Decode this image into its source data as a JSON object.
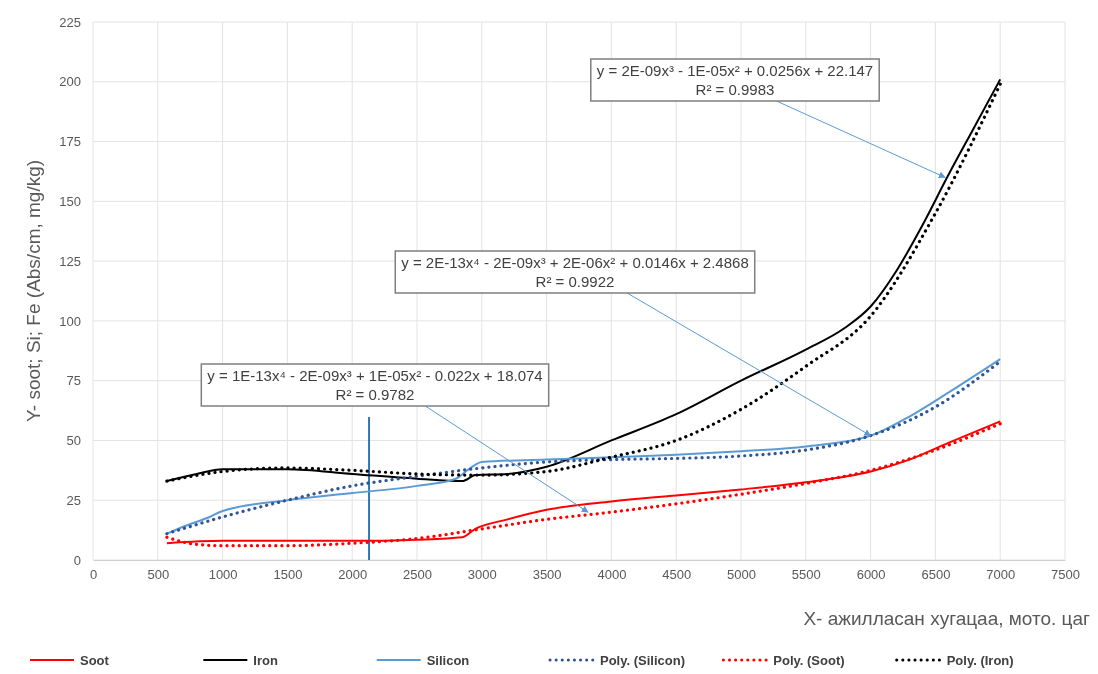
{
  "chart_data": {
    "type": "line",
    "xlabel": "X- ажилласан хугацаа, мото. цаг",
    "ylabel": "Y- soot; Si; Fe (Abs/cm, mg/kg)",
    "xlim": [
      0,
      7500
    ],
    "xticks": [
      0,
      500,
      1000,
      1500,
      2000,
      2500,
      3000,
      3500,
      4000,
      4500,
      5000,
      5500,
      6000,
      6500,
      7000,
      7500
    ],
    "ylim": [
      0,
      225
    ],
    "yticks": [
      0,
      25,
      50,
      75,
      100,
      125,
      150,
      175,
      200,
      225
    ],
    "grid": true,
    "legend": "bottom",
    "marker": "none",
    "series": [
      {
        "name": "Soot",
        "color": "#ff0000",
        "line_style": "solid",
        "x": [
          570,
          1000,
          1500,
          2000,
          2500,
          2850,
          2950,
          3200,
          3500,
          4000,
          4500,
          5000,
          5500,
          6000,
          6300,
          6600,
          7000
        ],
        "values": [
          7,
          8,
          8,
          8,
          8.5,
          9.5,
          13,
          17,
          21,
          24.5,
          27,
          29.5,
          32.5,
          37,
          42,
          49,
          58
        ]
      },
      {
        "name": "Iron",
        "color": "#000000",
        "line_style": "solid",
        "x": [
          570,
          800,
          1000,
          1500,
          2000,
          2500,
          2850,
          2950,
          3200,
          3500,
          4000,
          4500,
          5000,
          5500,
          5800,
          6000,
          6200,
          6400,
          6600,
          6800,
          7000
        ],
        "values": [
          33,
          36,
          38,
          38,
          36,
          34,
          33,
          35.5,
          36,
          39,
          50,
          61,
          75,
          88,
          97,
          106,
          121,
          140,
          161,
          181,
          201
        ]
      },
      {
        "name": "Silicon",
        "color": "#5b9bd5",
        "line_style": "solid",
        "x": [
          570,
          700,
          900,
          1000,
          1500,
          2000,
          2500,
          2800,
          2900,
          3000,
          3500,
          4000,
          4500,
          5000,
          5500,
          6000,
          6300,
          6600,
          7000
        ],
        "values": [
          11,
          14,
          18,
          20.5,
          25,
          28,
          31,
          34,
          38,
          41,
          42,
          43,
          44,
          45.5,
          47.5,
          52,
          60,
          70,
          84
        ]
      },
      {
        "name": "Poly. (Silicon)",
        "color": "#2f5597",
        "line_style": "dotted",
        "x": [
          570,
          1000,
          1500,
          2000,
          2500,
          3000,
          3500,
          4000,
          4500,
          5000,
          5500,
          6000,
          6500,
          7000
        ],
        "values": [
          11,
          18,
          25,
          31,
          35,
          38.5,
          41,
          42,
          42.5,
          43.5,
          46,
          52,
          64,
          83
        ]
      },
      {
        "name": "Poly. (Soot)",
        "color": "#ff0000",
        "line_style": "dotted",
        "x": [
          570,
          800,
          1000,
          1500,
          2000,
          2500,
          3000,
          3500,
          4000,
          4500,
          5000,
          5500,
          6000,
          6500,
          7000
        ],
        "values": [
          9.5,
          6.5,
          6,
          6,
          7,
          9,
          13,
          17,
          20,
          23.5,
          27.5,
          32,
          37.5,
          46,
          57
        ]
      },
      {
        "name": "Poly. (Iron)",
        "color": "#000000",
        "line_style": "dotted",
        "x": [
          570,
          1000,
          1500,
          2000,
          2500,
          3000,
          3500,
          4000,
          4500,
          5000,
          5500,
          6000,
          6500,
          7000
        ],
        "values": [
          33,
          37,
          38.5,
          37.5,
          36,
          35.5,
          37,
          43,
          50,
          63,
          81,
          102,
          145,
          199
        ]
      }
    ],
    "ref_lines": [
      {
        "axis": "x",
        "value": 2130,
        "color": "#2e75b6",
        "line_style": "solid"
      }
    ],
    "annotations": [
      {
        "text": "y = 2E-09x³ - 1E-05x² + 0.0256x + 22.147\nR² = 0.9983",
        "x": 6575,
        "y": 160
      },
      {
        "text": "y = 2E-13x⁴ - 2E-09x³ + 2E-06x² + 0.0146x + 2.4868\nR² = 0.9922",
        "x": 6000,
        "y": 52
      },
      {
        "text": "y = 1E-13x⁴ - 2E-09x³ + 1E-05x² - 0.022x + 18.074\nR² = 0.9782",
        "x": 3820,
        "y": 20
      }
    ]
  }
}
